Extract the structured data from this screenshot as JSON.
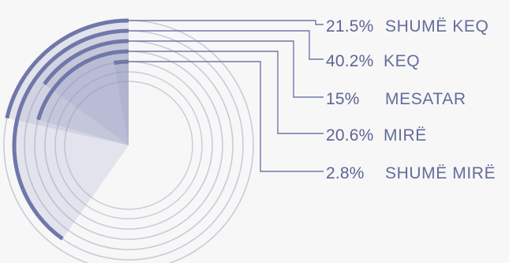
{
  "chart_data": {
    "type": "radial-bar",
    "title": "",
    "series": [
      {
        "label": "SHUMË KEQ",
        "value": 21.5,
        "value_label": "21.5%"
      },
      {
        "label": "KEQ",
        "value": 40.2,
        "value_label": "40.2%"
      },
      {
        "label": "MESATAR",
        "value": 15,
        "value_label": "15%"
      },
      {
        "label": "MIRË",
        "value": 20.6,
        "value_label": "20.6%"
      },
      {
        "label": "SHUMË MIRË",
        "value": 2.8,
        "value_label": "2.8%"
      }
    ]
  },
  "colors": {
    "background": "#f7f7f8",
    "accent": "#6f78a8",
    "ring": "#c9cbd6",
    "fill": "#8f97bd",
    "text_value": "#5c6593",
    "text_label": "#636d9a"
  }
}
